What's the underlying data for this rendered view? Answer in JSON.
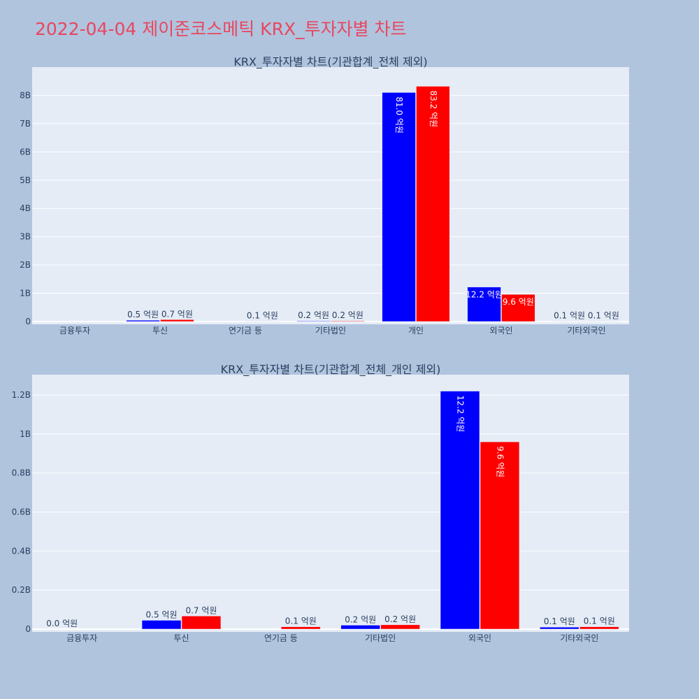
{
  "page": {
    "title": "2022-04-04 제이준코스메틱 KRX_투자자별 차트"
  },
  "colors": {
    "background": "#b0c4de",
    "plot_background": "#e5ecf6",
    "grid": "#ffffff",
    "title": "#e8475f",
    "text": "#2a3f5f",
    "series1": "#0000ff",
    "series2": "#ff0000"
  },
  "chart_data": [
    {
      "type": "bar",
      "title": "KRX_투자자별 차트(기관합계_전체 제외)",
      "categories": [
        "금융투자",
        "투신",
        "연기금 등",
        "기타법인",
        "개인",
        "외국인",
        "기타외국인"
      ],
      "series": [
        {
          "color": "#0000ff",
          "values": [
            0,
            45000000,
            0,
            20000000,
            8100000000,
            1220000000,
            10000000
          ],
          "labels": [
            "",
            "0.5 억원",
            "",
            "0.2 억원",
            "81.0 억원",
            "12.2 억원",
            "0.1 억원"
          ]
        },
        {
          "color": "#ff0000",
          "values": [
            0,
            67000000,
            12000000,
            22000000,
            8320000000,
            960000000,
            12000000
          ],
          "labels": [
            "",
            "0.7 억원",
            "0.1 억원",
            "0.2 억원",
            "83.2 억원",
            "9.6 억원",
            "0.1 억원"
          ]
        }
      ],
      "ylim": [
        0,
        8900000000
      ],
      "yticks": [
        0,
        1000000000,
        2000000000,
        3000000000,
        4000000000,
        5000000000,
        6000000000,
        7000000000,
        8000000000
      ],
      "ytick_labels": [
        "0",
        "1B",
        "2B",
        "3B",
        "4B",
        "5B",
        "6B",
        "7B",
        "8B"
      ],
      "grid": true,
      "xlabel": "",
      "ylabel": ""
    },
    {
      "type": "bar",
      "title": "KRX_투자자별 차트(기관합계_전체_개인 제외)",
      "categories": [
        "금융투자",
        "투신",
        "연기금 등",
        "기타법인",
        "외국인",
        "기타외국인"
      ],
      "series": [
        {
          "color": "#0000ff",
          "values": [
            0,
            45000000,
            0,
            20000000,
            1220000000,
            10000000
          ],
          "labels": [
            "0.0 억원",
            "0.5 억원",
            "",
            "0.2 억원",
            "12.2 억원",
            "0.1 억원"
          ]
        },
        {
          "color": "#ff0000",
          "values": [
            0,
            67000000,
            12000000,
            22000000,
            960000000,
            12000000
          ],
          "labels": [
            "",
            "0.7 억원",
            "0.1 억원",
            "0.2 억원",
            "9.6 억원",
            "0.1 억원"
          ]
        }
      ],
      "ylim": [
        0,
        1290000000
      ],
      "yticks": [
        0,
        200000000,
        400000000,
        600000000,
        800000000,
        1000000000,
        1200000000
      ],
      "ytick_labels": [
        "0",
        "0.2B",
        "0.4B",
        "0.6B",
        "0.8B",
        "1B",
        "1.2B"
      ],
      "grid": true,
      "xlabel": "",
      "ylabel": ""
    }
  ]
}
